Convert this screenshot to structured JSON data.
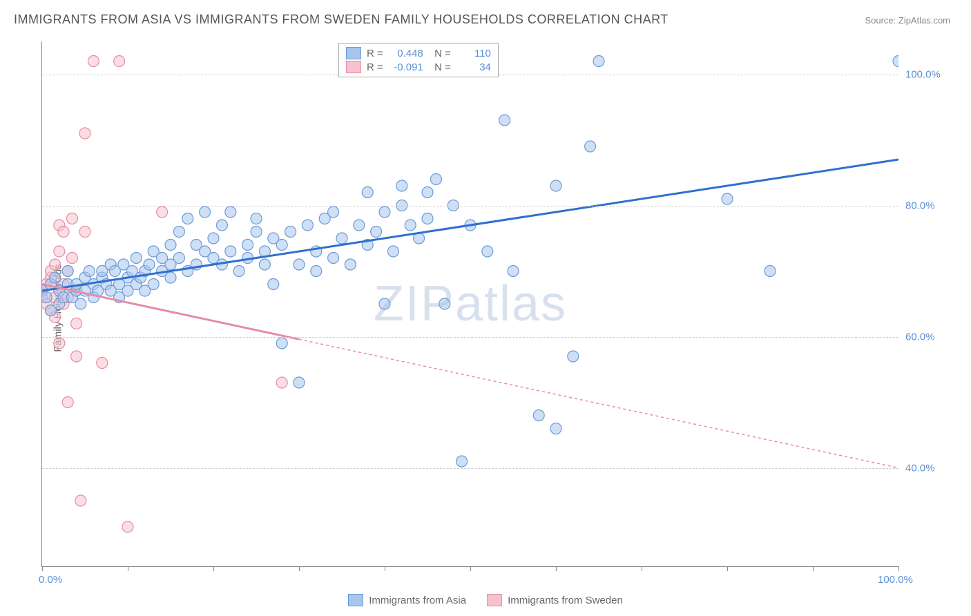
{
  "title": "IMMIGRANTS FROM ASIA VS IMMIGRANTS FROM SWEDEN FAMILY HOUSEHOLDS CORRELATION CHART",
  "source": "Source: ZipAtlas.com",
  "ylabel": "Family Households",
  "watermark": "ZIPatlas",
  "chart": {
    "type": "scatter",
    "xlim": [
      0,
      100
    ],
    "ylim": [
      25,
      105
    ],
    "x_ticks": [
      0,
      10,
      20,
      30,
      40,
      50,
      60,
      70,
      80,
      90,
      100
    ],
    "x_tick_labels": {
      "0": "0.0%",
      "100": "100.0%"
    },
    "y_ticks": [
      40,
      60,
      80,
      100
    ],
    "y_tick_labels": {
      "40": "40.0%",
      "60": "60.0%",
      "80": "80.0%",
      "100": "100.0%"
    },
    "background_color": "#ffffff",
    "grid_color": "#cccccc",
    "tick_label_color": "#5b8fd6",
    "tick_label_fontsize": 15,
    "marker_radius": 8,
    "marker_opacity": 0.55,
    "trend_line_width": 3
  },
  "series": [
    {
      "name": "Immigrants from Asia",
      "color_fill": "#a8c5ec",
      "color_stroke": "#6b9bd8",
      "trend_color": "#2e6fd0",
      "trend_dash": "none",
      "R": "0.448",
      "N": "110",
      "trend": {
        "x1": 0,
        "y1": 67,
        "x2": 100,
        "y2": 87
      },
      "trend_solid_to_x": 100,
      "points": [
        [
          0,
          67
        ],
        [
          0.5,
          66
        ],
        [
          1,
          68
        ],
        [
          1,
          64
        ],
        [
          1.5,
          69
        ],
        [
          2,
          67
        ],
        [
          2,
          65
        ],
        [
          2.5,
          66
        ],
        [
          3,
          68
        ],
        [
          3,
          70
        ],
        [
          3.5,
          66
        ],
        [
          4,
          67
        ],
        [
          4,
          68
        ],
        [
          4.5,
          65
        ],
        [
          5,
          69
        ],
        [
          5,
          67
        ],
        [
          5.5,
          70
        ],
        [
          6,
          66
        ],
        [
          6,
          68
        ],
        [
          6.5,
          67
        ],
        [
          7,
          69
        ],
        [
          7,
          70
        ],
        [
          7.5,
          68
        ],
        [
          8,
          67
        ],
        [
          8,
          71
        ],
        [
          8.5,
          70
        ],
        [
          9,
          68
        ],
        [
          9,
          66
        ],
        [
          9.5,
          71
        ],
        [
          10,
          69
        ],
        [
          10,
          67
        ],
        [
          10.5,
          70
        ],
        [
          11,
          68
        ],
        [
          11,
          72
        ],
        [
          11.5,
          69
        ],
        [
          12,
          70
        ],
        [
          12,
          67
        ],
        [
          12.5,
          71
        ],
        [
          13,
          68
        ],
        [
          13,
          73
        ],
        [
          14,
          70
        ],
        [
          14,
          72
        ],
        [
          15,
          69
        ],
        [
          15,
          74
        ],
        [
          15,
          71
        ],
        [
          16,
          76
        ],
        [
          16,
          72
        ],
        [
          17,
          70
        ],
        [
          17,
          78
        ],
        [
          18,
          71
        ],
        [
          18,
          74
        ],
        [
          19,
          73
        ],
        [
          19,
          79
        ],
        [
          20,
          72
        ],
        [
          20,
          75
        ],
        [
          21,
          71
        ],
        [
          21,
          77
        ],
        [
          22,
          73
        ],
        [
          22,
          79
        ],
        [
          23,
          70
        ],
        [
          24,
          74
        ],
        [
          24,
          72
        ],
        [
          25,
          76
        ],
        [
          25,
          78
        ],
        [
          26,
          73
        ],
        [
          26,
          71
        ],
        [
          27,
          75
        ],
        [
          27,
          68
        ],
        [
          28,
          59
        ],
        [
          28,
          74
        ],
        [
          29,
          76
        ],
        [
          30,
          71
        ],
        [
          30,
          53
        ],
        [
          31,
          77
        ],
        [
          32,
          73
        ],
        [
          32,
          70
        ],
        [
          33,
          78
        ],
        [
          34,
          72
        ],
        [
          34,
          79
        ],
        [
          35,
          75
        ],
        [
          36,
          71
        ],
        [
          37,
          77
        ],
        [
          38,
          82
        ],
        [
          38,
          74
        ],
        [
          39,
          76
        ],
        [
          40,
          65
        ],
        [
          40,
          79
        ],
        [
          41,
          73
        ],
        [
          42,
          83
        ],
        [
          42,
          80
        ],
        [
          43,
          77
        ],
        [
          44,
          75
        ],
        [
          45,
          82
        ],
        [
          45,
          78
        ],
        [
          46,
          84
        ],
        [
          47,
          65
        ],
        [
          48,
          80
        ],
        [
          49,
          41
        ],
        [
          50,
          77
        ],
        [
          52,
          73
        ],
        [
          54,
          93
        ],
        [
          55,
          70
        ],
        [
          58,
          48
        ],
        [
          60,
          83
        ],
        [
          60,
          46
        ],
        [
          62,
          57
        ],
        [
          64,
          89
        ],
        [
          65,
          102
        ],
        [
          80,
          81
        ],
        [
          85,
          70
        ],
        [
          100,
          102
        ]
      ]
    },
    {
      "name": "Immigrants from Sweden",
      "color_fill": "#f5c2ce",
      "color_stroke": "#e88ba3",
      "trend_color": "#e88ba3",
      "trend_dash": "4 4",
      "R": "-0.091",
      "N": "34",
      "trend": {
        "x1": 0,
        "y1": 68,
        "x2": 100,
        "y2": 40
      },
      "trend_solid_to_x": 30,
      "points": [
        [
          0,
          67
        ],
        [
          0,
          66
        ],
        [
          0.5,
          68
        ],
        [
          0.5,
          65
        ],
        [
          1,
          69
        ],
        [
          1,
          64
        ],
        [
          1,
          70
        ],
        [
          1.5,
          66
        ],
        [
          1.5,
          71
        ],
        [
          1.5,
          63
        ],
        [
          2,
          67
        ],
        [
          2,
          73
        ],
        [
          2,
          59
        ],
        [
          2,
          77
        ],
        [
          2.5,
          68
        ],
        [
          2.5,
          65
        ],
        [
          2.5,
          76
        ],
        [
          3,
          66
        ],
        [
          3,
          70
        ],
        [
          3,
          50
        ],
        [
          3.5,
          72
        ],
        [
          3.5,
          78
        ],
        [
          4,
          67
        ],
        [
          4,
          62
        ],
        [
          4,
          57
        ],
        [
          4.5,
          35
        ],
        [
          5,
          76
        ],
        [
          5,
          91
        ],
        [
          6,
          102
        ],
        [
          7,
          56
        ],
        [
          9,
          102
        ],
        [
          10,
          31
        ],
        [
          14,
          79
        ],
        [
          28,
          53
        ]
      ]
    }
  ],
  "bottom_legend": [
    {
      "label": "Immigrants from Asia",
      "fill": "#a8c5ec",
      "stroke": "#6b9bd8"
    },
    {
      "label": "Immigrants from Sweden",
      "fill": "#f5c2ce",
      "stroke": "#e88ba3"
    }
  ]
}
